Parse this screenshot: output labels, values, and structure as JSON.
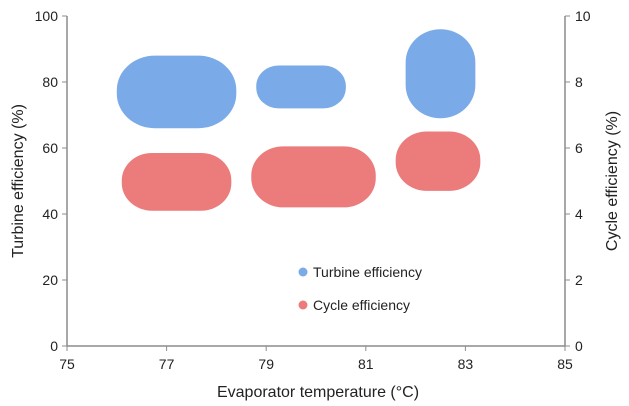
{
  "chart_data": {
    "type": "scatter",
    "title": "",
    "xlabel": "Evaporator temperature (°C)",
    "ylabel_left": "Turbine efficiency (%)",
    "ylabel_right": "Cycle efficiency (%)",
    "xlim": [
      75,
      85
    ],
    "ylim_left": [
      0,
      100
    ],
    "ylim_right": [
      0,
      10
    ],
    "x_ticks": [
      75,
      77,
      79,
      81,
      83,
      85
    ],
    "y_ticks_left": [
      0,
      20,
      40,
      60,
      80,
      100
    ],
    "y_ticks_right": [
      0,
      2,
      4,
      6,
      8,
      10
    ],
    "grid": false,
    "legend_position": "center-bottom",
    "series": [
      {
        "name": "Turbine efficiency",
        "axis": "left",
        "color": "#7aaae8",
        "regions": [
          {
            "x_range": [
              76.0,
              78.4
            ],
            "y_range": [
              66,
              88
            ]
          },
          {
            "x_range": [
              78.8,
              80.6
            ],
            "y_range": [
              72,
              85
            ]
          },
          {
            "x_range": [
              81.8,
              83.2
            ],
            "y_range": [
              69,
              96
            ]
          }
        ]
      },
      {
        "name": "Cycle efficiency",
        "axis": "right",
        "color": "#ec7b7b",
        "regions": [
          {
            "x_range": [
              76.1,
              78.3
            ],
            "y_range": [
              4.1,
              5.85
            ]
          },
          {
            "x_range": [
              78.7,
              81.2
            ],
            "y_range": [
              4.2,
              6.05
            ]
          },
          {
            "x_range": [
              81.6,
              83.3
            ],
            "y_range": [
              4.7,
              6.5
            ]
          }
        ]
      }
    ]
  }
}
